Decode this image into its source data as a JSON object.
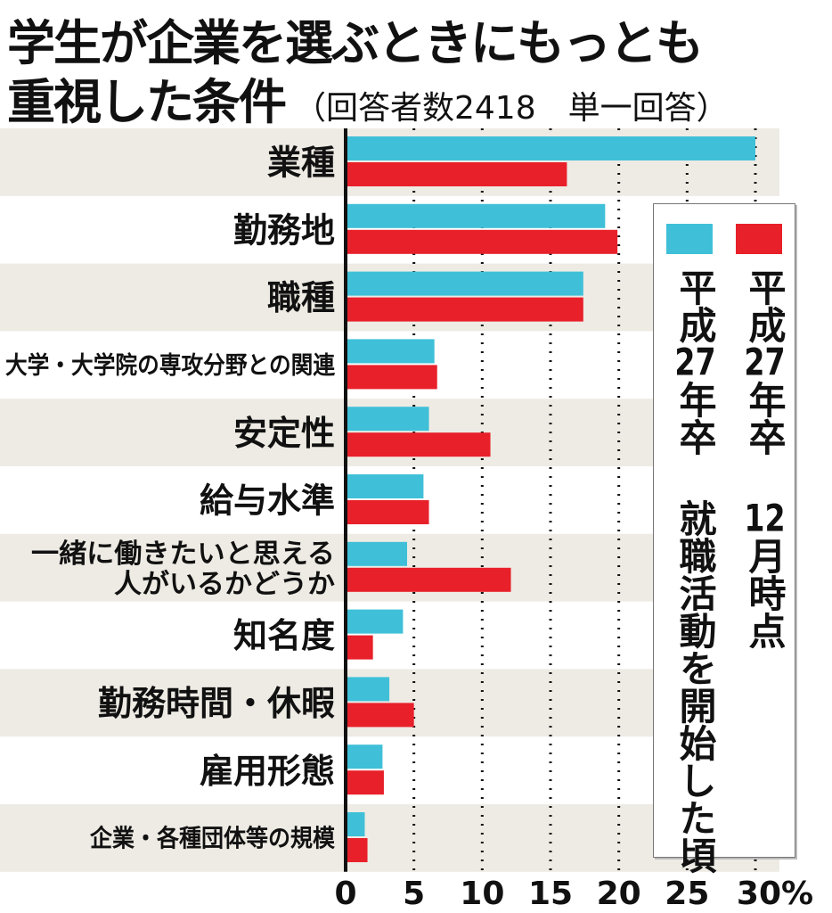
{
  "chart_data": {
    "type": "bar",
    "orientation": "horizontal",
    "title": "学生が企業を選ぶときにもっとも重視した条件",
    "title_line1": "学生が企業を選ぶときにもっとも",
    "title_line2": "重視した条件",
    "subtitle": "（回答者数2418　単一回答）",
    "categories": [
      "業種",
      "勤務地",
      "職種",
      "大学・大学院の専攻分野との関連",
      "安定性",
      "給与水準",
      "一緒に働きたいと思える人がいるかどうか",
      "知名度",
      "勤務時間・休暇",
      "雇用形態",
      "企業・各種団体等の規模"
    ],
    "category_lines": [
      [
        "業種"
      ],
      [
        "勤務地"
      ],
      [
        "職種"
      ],
      [
        "大学・大学院の専攻分野との関連"
      ],
      [
        "安定性"
      ],
      [
        "給与水準"
      ],
      [
        "一緒に働きたいと思える",
        "人がいるかどうか"
      ],
      [
        "知名度"
      ],
      [
        "勤務時間・休暇"
      ],
      [
        "雇用形態"
      ],
      [
        "企業・各種団体等の規模"
      ]
    ],
    "series": [
      {
        "name": "平成27年卒 就職活動を開始した頃",
        "color": "#3fc0d8",
        "values": [
          30.0,
          19.0,
          17.4,
          6.5,
          6.1,
          5.7,
          4.5,
          4.2,
          3.2,
          2.7,
          1.4
        ]
      },
      {
        "name": "平成27年卒 12月時点",
        "color": "#e8202a",
        "values": [
          16.2,
          19.9,
          17.4,
          6.7,
          10.6,
          6.1,
          12.1,
          2.0,
          5.0,
          2.8,
          1.6
        ]
      }
    ],
    "xlim": [
      0,
      30
    ],
    "xticks": [
      "0",
      "5",
      "10",
      "15",
      "20",
      "25",
      "30%"
    ],
    "grid": "dotted vertical",
    "legend_placement": "right",
    "row_shading": "#eeebe4"
  }
}
